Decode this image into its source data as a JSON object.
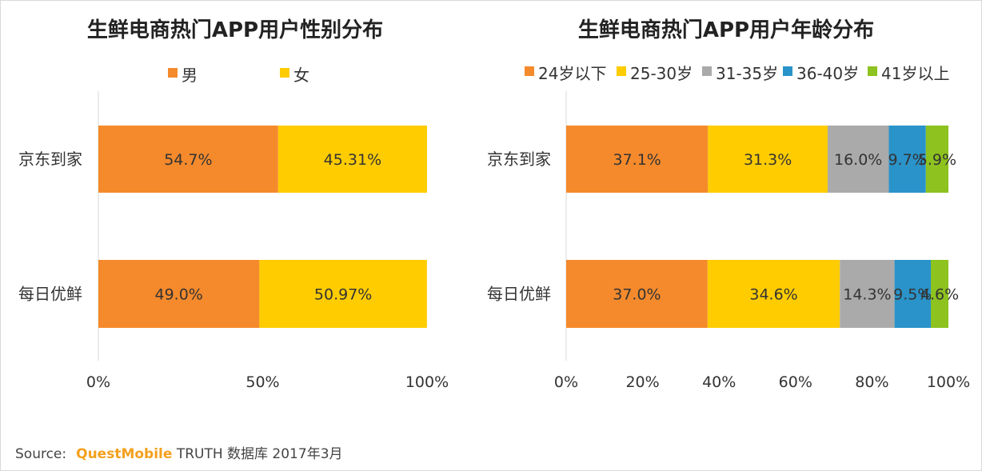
{
  "chart_data": [
    {
      "type": "bar",
      "orientation": "horizontal",
      "stacked": true,
      "title": "生鲜电商热门APP用户性别分布",
      "categories": [
        "京东到家",
        "每日优鲜"
      ],
      "series": [
        {
          "name": "男",
          "color": "#f58a2c",
          "values": [
            54.7,
            49.0
          ],
          "labels": [
            "54.7%",
            "49.0%"
          ]
        },
        {
          "name": "女",
          "color": "#ffcc00",
          "values": [
            45.31,
            50.97
          ],
          "labels": [
            "45.31%",
            "50.97%"
          ]
        }
      ],
      "xlim": [
        0,
        100
      ],
      "xticks": [
        "0%",
        "50%",
        "100%"
      ],
      "legend": "top",
      "grid": false
    },
    {
      "type": "bar",
      "orientation": "horizontal",
      "stacked": true,
      "title": "生鲜电商热门APP用户年龄分布",
      "categories": [
        "京东到家",
        "每日优鲜"
      ],
      "series": [
        {
          "name": "24岁以下",
          "color": "#f58a2c",
          "values": [
            37.1,
            37.0
          ],
          "labels": [
            "37.1%",
            "37.0%"
          ]
        },
        {
          "name": "25-30岁",
          "color": "#ffcc00",
          "values": [
            31.3,
            34.6
          ],
          "labels": [
            "31.3%",
            "34.6%"
          ]
        },
        {
          "name": "31-35岁",
          "color": "#aaaaaa",
          "values": [
            16.0,
            14.3
          ],
          "labels": [
            "16.0%",
            "14.3%"
          ]
        },
        {
          "name": "36-40岁",
          "color": "#2a93c9",
          "values": [
            9.7,
            9.5
          ],
          "labels": [
            "9.7%",
            "9.5%"
          ]
        },
        {
          "name": "41岁以上",
          "color": "#8dc21f",
          "values": [
            5.9,
            4.6
          ],
          "labels": [
            "5.9%",
            "4.6%"
          ]
        }
      ],
      "xlim": [
        0,
        100
      ],
      "xticks": [
        "0%",
        "20%",
        "40%",
        "60%",
        "80%",
        "100%"
      ],
      "legend": "top",
      "grid": false
    }
  ],
  "source": {
    "prefix": "Source:",
    "brand": "QuestMobile",
    "rest": "TRUTH 数据库 2017年3月"
  }
}
